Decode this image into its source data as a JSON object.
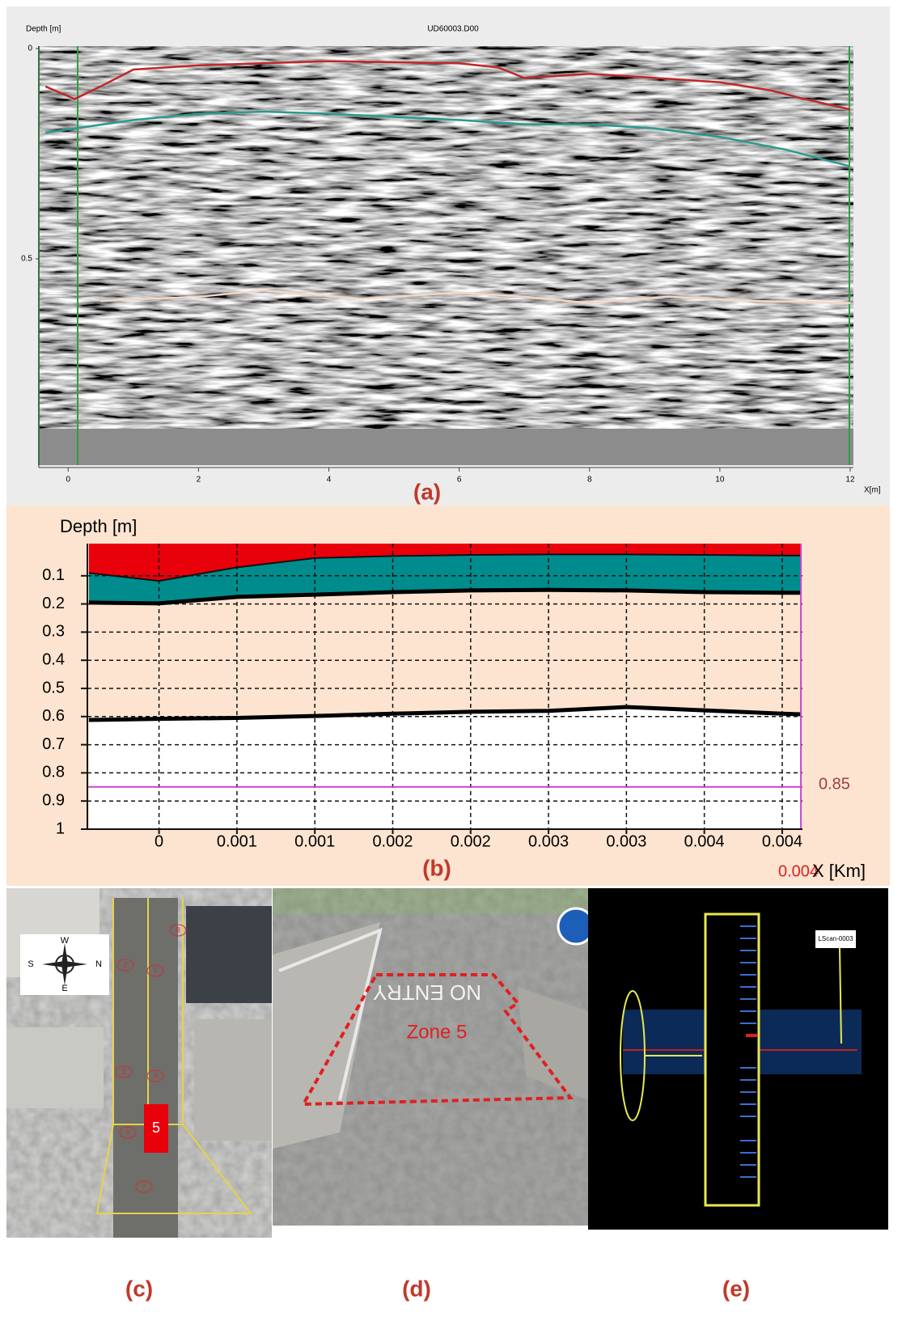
{
  "chart_data": [
    {
      "type": "line",
      "title": "UD60003.D00",
      "y_label": "Depth [m]",
      "x_label": "X[m]",
      "caption": "(a)",
      "xlim": [
        -0.45,
        12.05
      ],
      "ylim": [
        0,
        1
      ],
      "y_inverted": true,
      "xticks": [
        0,
        2,
        4,
        6,
        8,
        10,
        12
      ],
      "yticks": [
        0,
        0.5
      ],
      "grid": false,
      "series": [
        {
          "color": "#c0282a",
          "x": [
            -0.35,
            0.1,
            0.5,
            1,
            2,
            4,
            6,
            6.6,
            7,
            8,
            9,
            10,
            10.8,
            11.3,
            12
          ],
          "values": [
            0.09,
            0.12,
            0.09,
            0.05,
            0.04,
            0.03,
            0.035,
            0.045,
            0.07,
            0.06,
            0.07,
            0.08,
            0.1,
            0.12,
            0.145
          ]
        },
        {
          "color": "#2a9a90",
          "x": [
            -0.35,
            1,
            2,
            3,
            4,
            6,
            7,
            8,
            9,
            10,
            11,
            12
          ],
          "values": [
            0.2,
            0.17,
            0.155,
            0.15,
            0.155,
            0.17,
            0.18,
            0.18,
            0.19,
            0.21,
            0.24,
            0.28
          ]
        },
        {
          "color": "#f3d8c4",
          "x": [
            0.5,
            2,
            3,
            4.5,
            6,
            7,
            8,
            9.2,
            10.5,
            12
          ],
          "values": [
            0.6,
            0.59,
            0.575,
            0.595,
            0.58,
            0.59,
            0.605,
            0.59,
            0.6,
            0.605
          ]
        }
      ]
    },
    {
      "type": "area",
      "y_label": "Depth [m]",
      "x_label": "X [Km]",
      "caption": "(b)",
      "x_annotation": "0.004",
      "xlim": [
        -0.00046,
        0.00413
      ],
      "ylim": [
        0,
        1
      ],
      "y_inverted": true,
      "grid": true,
      "yticks": [
        0.1,
        0.2,
        0.3,
        0.4,
        0.5,
        0.6,
        0.7,
        0.8,
        0.9,
        1
      ],
      "xticks": [
        0,
        {
          "value": 0.0005,
          "label": "0.001"
        },
        {
          "value": 0.001,
          "label": "0.001"
        },
        {
          "value": 0.0015,
          "label": "0.002"
        },
        {
          "value": 0.002,
          "label": "0.002"
        },
        {
          "value": 0.0025,
          "label": "0.003"
        },
        {
          "value": 0.003,
          "label": "0.003"
        },
        {
          "value": 0.0035,
          "label": "0.004"
        },
        {
          "value": 0.004,
          "label": "0.004"
        }
      ],
      "x": [
        -0.00045,
        0,
        0.0005,
        0.001,
        0.0015,
        0.002,
        0.0025,
        0.003,
        0.0035,
        0.004,
        0.00412
      ],
      "series": [
        {
          "color": "#111111",
          "fill": "#e8000a",
          "values": [
            0.09,
            0.118,
            0.07,
            0.037,
            0.03,
            0.026,
            0.024,
            0.024,
            0.026,
            0.028,
            0.028
          ]
        },
        {
          "color": "#000000",
          "fill": "#008c8c",
          "values": [
            0.195,
            0.198,
            0.175,
            0.167,
            0.158,
            0.152,
            0.15,
            0.152,
            0.158,
            0.16,
            0.16
          ]
        },
        {
          "color": "#000000",
          "fill": "#ffffff",
          "values": [
            0.612,
            0.608,
            0.605,
            0.598,
            0.59,
            0.583,
            0.58,
            0.566,
            0.578,
            0.59,
            0.592
          ]
        }
      ],
      "hline": 0.85,
      "hline_color": "#cc44cc",
      "vline": 0.00412
    }
  ],
  "panel_c": {
    "caption": "(c)",
    "compass": [
      "W",
      "N",
      "E",
      "S"
    ],
    "zone": "5",
    "plots": [
      "8",
      "2",
      "1",
      "3",
      "4",
      "6",
      "7"
    ]
  },
  "panel_d": {
    "caption": "(d)",
    "road_text": "NO ENTRY",
    "zone": "Zone 5"
  },
  "panel_e": {
    "caption": "(e)",
    "scan_label": "LScan-0003"
  }
}
